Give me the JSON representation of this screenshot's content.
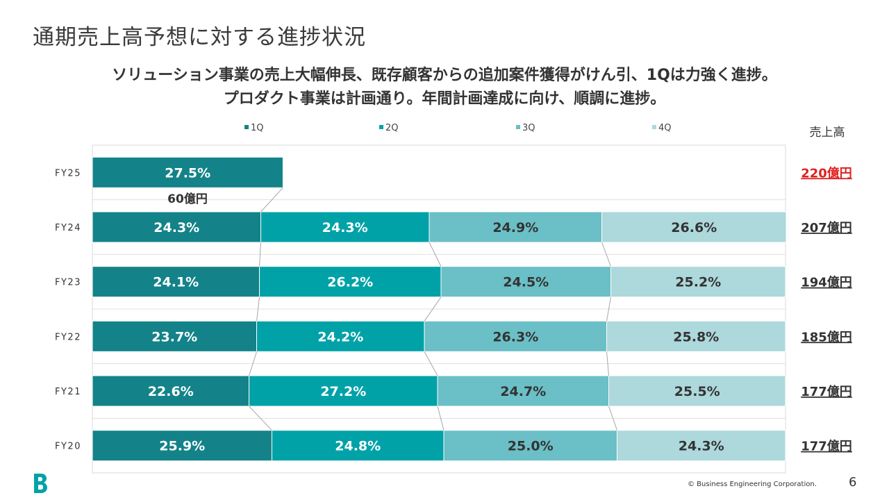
{
  "slide": {
    "title": "通期売上高予想に対する進捗状況",
    "subtitle_line1": "ソリューション事業の売上大幅伸長、既存顧客からの追加案件獲得がけん引、1Qは力強く進捗。",
    "subtitle_line2": "プロダクト事業は計画通り。年間計画達成に向け、順調に進捗。",
    "copyright": "© Business Engineering Corporation.",
    "page_number": "6",
    "logo_letter": "B"
  },
  "colors": {
    "q1": "#138389",
    "q2": "#00A2A8",
    "q3": "#6BBFC6",
    "q4": "#ADD8DC",
    "highlight": "#E02020",
    "logo": "#00A2A8"
  },
  "chart_data": {
    "type": "bar",
    "orientation": "horizontal",
    "stacked": true,
    "percent_stacked": true,
    "categories": [
      "FY25",
      "FY24",
      "FY23",
      "FY22",
      "FY21",
      "FY20"
    ],
    "series": [
      {
        "name": "1Q",
        "values": [
          27.5,
          24.3,
          24.1,
          23.7,
          22.6,
          25.9
        ]
      },
      {
        "name": "2Q",
        "values": [
          null,
          24.3,
          26.2,
          24.2,
          27.2,
          24.8
        ]
      },
      {
        "name": "3Q",
        "values": [
          null,
          24.9,
          24.5,
          26.3,
          24.7,
          25.0
        ]
      },
      {
        "name": "4Q",
        "values": [
          null,
          26.6,
          25.2,
          25.8,
          25.5,
          24.3
        ]
      }
    ],
    "data_label_format": "{v}%",
    "xlim": [
      0,
      100
    ],
    "legend_position": "top",
    "gridlines": true,
    "series_lines": true,
    "annotation": "60億円",
    "sales_header": "売上高",
    "sales": [
      "220億円",
      "207億円",
      "194億円",
      "185億円",
      "177億円",
      "177億円"
    ],
    "sales_highlight_index": 0
  }
}
